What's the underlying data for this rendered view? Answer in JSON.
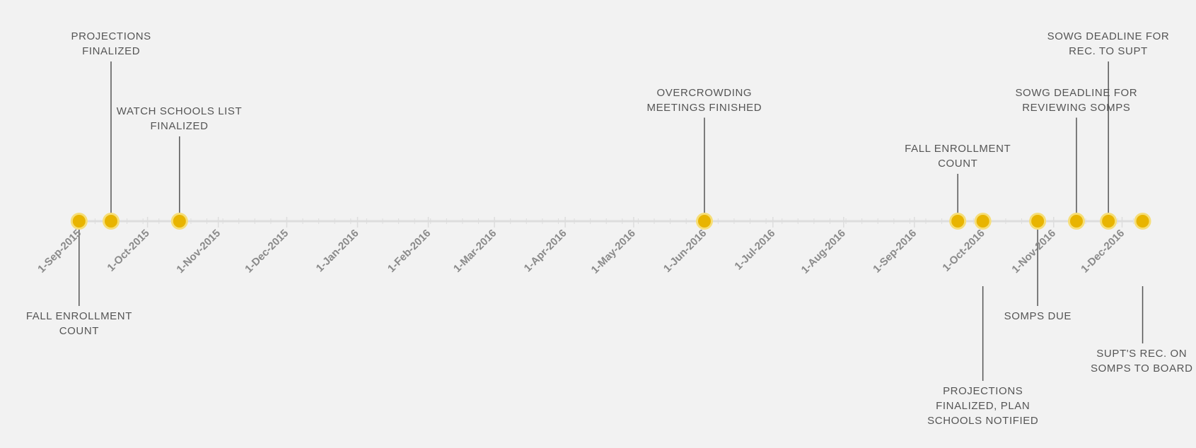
{
  "chart_data": {
    "type": "timeline",
    "title": "",
    "xlabel": "",
    "ylabel": "",
    "xlim": [
      "2015-08-24",
      "2016-12-12"
    ],
    "grid": false,
    "legend": "none",
    "colors": {
      "marker_fill": "#e8b400",
      "marker_ring": "#f6de78",
      "axis": "#dddddd",
      "stem": "#555555",
      "label": "#555555",
      "tick_label": "#8a8a8a",
      "background": "#f2f2f2"
    },
    "ticks": [
      {
        "date": "2015-09-01",
        "label": "1-Sep-2015"
      },
      {
        "date": "2015-10-01",
        "label": "1-Oct-2015"
      },
      {
        "date": "2015-11-01",
        "label": "1-Nov-2015"
      },
      {
        "date": "2015-12-01",
        "label": "1-Dec-2015"
      },
      {
        "date": "2016-01-01",
        "label": "1-Jan-2016"
      },
      {
        "date": "2016-02-01",
        "label": "1-Feb-2016"
      },
      {
        "date": "2016-03-01",
        "label": "1-Mar-2016"
      },
      {
        "date": "2016-04-01",
        "label": "1-Apr-2016"
      },
      {
        "date": "2016-05-01",
        "label": "1-May-2016"
      },
      {
        "date": "2016-06-01",
        "label": "1-Jun-2016"
      },
      {
        "date": "2016-07-01",
        "label": "1-Jul-2016"
      },
      {
        "date": "2016-08-01",
        "label": "1-Aug-2016"
      },
      {
        "date": "2016-09-01",
        "label": "1-Sep-2016"
      },
      {
        "date": "2016-10-01",
        "label": "1-Oct-2016"
      },
      {
        "date": "2016-11-01",
        "label": "1-Nov-2016"
      },
      {
        "date": "2016-12-01",
        "label": "1-Dec-2016"
      }
    ],
    "events": [
      {
        "date": "2015-09-01",
        "label": "FALL ENROLLMENT\nCOUNT",
        "side": "below",
        "stem_level": 2
      },
      {
        "date": "2015-09-15",
        "label": "PROJECTIONS\nFINALIZED",
        "side": "above",
        "stem_level": 4
      },
      {
        "date": "2015-10-15",
        "label": "WATCH SCHOOLS LIST\nFINALIZED",
        "side": "above",
        "stem_level": 2
      },
      {
        "date": "2016-06-01",
        "label": "OVERCROWDING\nMEETINGS FINISHED",
        "side": "above",
        "stem_level": 2.5
      },
      {
        "date": "2016-09-20",
        "label": "FALL ENROLLMENT\nCOUNT",
        "side": "above",
        "stem_level": 1
      },
      {
        "date": "2016-10-01",
        "label": "PROJECTIONS\nFINALIZED, PLAN\nSCHOOLS NOTIFIED",
        "side": "below",
        "stem_level": 4
      },
      {
        "date": "2016-10-25",
        "label": "SOMPS DUE",
        "side": "below",
        "stem_level": 2
      },
      {
        "date": "2016-11-11",
        "label": "SOWG DEADLINE FOR\nREVIEWING SOMPS",
        "side": "above",
        "stem_level": 2.5
      },
      {
        "date": "2016-11-25",
        "label": "SOWG DEADLINE FOR\nREC. TO SUPT",
        "side": "above",
        "stem_level": 4
      },
      {
        "date": "2016-12-10",
        "label": "SUPT'S REC. ON\nSOMPS TO BOARD",
        "side": "below",
        "stem_level": 3
      }
    ]
  }
}
